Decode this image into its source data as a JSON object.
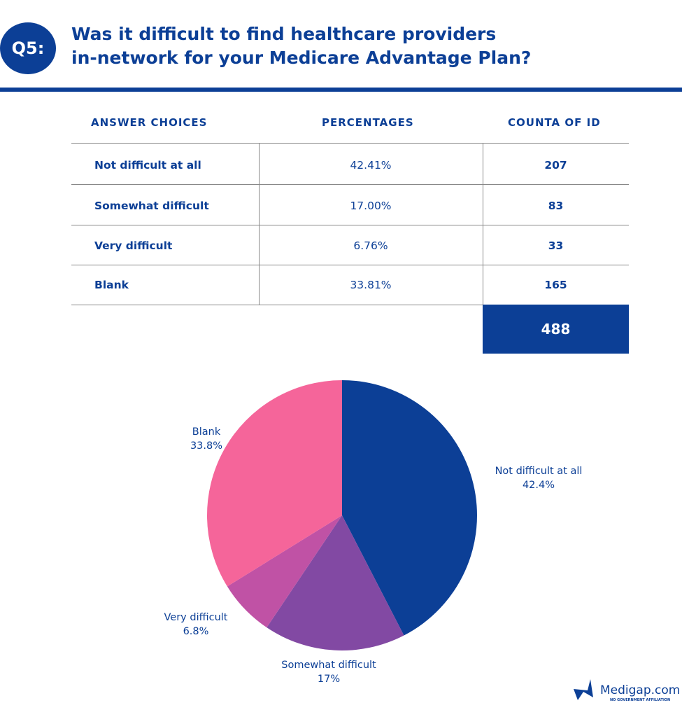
{
  "header": {
    "badge": "Q5:",
    "title_line1": "Was it difficult to find healthcare providers",
    "title_line2": "in-network for your Medicare Advantage Plan?"
  },
  "table": {
    "headers": [
      "ANSWER CHOICES",
      "PERCENTAGES",
      "COUNTA OF ID"
    ],
    "rows": [
      {
        "answer": "Not difficult at all",
        "percentage": "42.41%",
        "count": "207"
      },
      {
        "answer": "Somewhat difficult",
        "percentage": "17.00%",
        "count": "83"
      },
      {
        "answer": "Very difficult",
        "percentage": "6.76%",
        "count": "33"
      },
      {
        "answer": "Blank",
        "percentage": "33.81%",
        "count": "165"
      }
    ],
    "total": "488"
  },
  "chart_data": {
    "type": "pie",
    "categories": [
      "Not difficult at all",
      "Somewhat difficult",
      "Very difficult",
      "Blank"
    ],
    "values": [
      42.41,
      17.0,
      6.76,
      33.81
    ],
    "data_labels": [
      "42.4%",
      "17%",
      "6.8%",
      "33.8%"
    ],
    "colors": [
      "#0c3f96",
      "#8249a3",
      "#c052a5",
      "#f5659a"
    ]
  },
  "logo": {
    "text": "Medigap.com",
    "tagline": "NO GOVERNMENT AFFILIATION"
  }
}
